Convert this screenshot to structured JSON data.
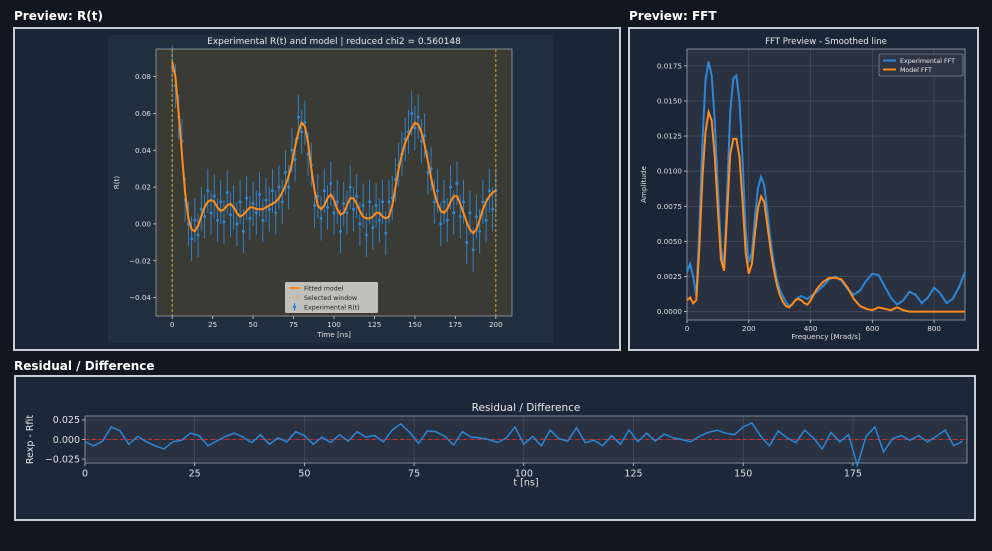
{
  "rt_section": {
    "title": "Preview: R(t)"
  },
  "fft_section": {
    "title": "Preview: FFT"
  },
  "res_section": {
    "title": "Residual / Difference"
  },
  "colors": {
    "page_bg": "#101721",
    "panel_bg": "#1a2535",
    "plot_bg_rt": "#3b3b35",
    "plot_bg_fft": "#2a3140",
    "experimental": "#2e86d6",
    "model": "#ff8c1a",
    "window_line": "#e3a72f",
    "zero_line": "#d62728"
  },
  "chart_data": [
    {
      "type": "line",
      "title": "Experimental R(t) and model | reduced chi2 = 0.560148",
      "xlabel": "Time [ns]",
      "ylabel": "R(t)",
      "xlim": [
        -10,
        210
      ],
      "ylim": [
        -0.05,
        0.095
      ],
      "xticks": [
        0,
        25,
        50,
        75,
        100,
        125,
        150,
        175,
        200
      ],
      "yticks": [
        -0.04,
        -0.02,
        0.0,
        0.02,
        0.04,
        0.06,
        0.08
      ],
      "xtick_labels": [
        "0",
        "25",
        "50",
        "75",
        "100",
        "125",
        "150",
        "175",
        "200"
      ],
      "ytick_labels": [
        "−0.04",
        "−0.02",
        "0.00",
        "0.02",
        "0.04",
        "0.06",
        "0.08"
      ],
      "selected_window": [
        0,
        200
      ],
      "legend": {
        "position": "bottom-center",
        "entries": [
          "Fitted model",
          "Selected window",
          "Experimental R(t)"
        ]
      },
      "series": [
        {
          "name": "Fitted model",
          "x": [
            0,
            2,
            4,
            6,
            8,
            10,
            12,
            14,
            16,
            18,
            20,
            22,
            24,
            26,
            28,
            30,
            32,
            34,
            36,
            38,
            40,
            42,
            44,
            46,
            48,
            50,
            52,
            54,
            56,
            58,
            60,
            62,
            64,
            66,
            68,
            70,
            72,
            74,
            76,
            78,
            80,
            82,
            84,
            86,
            88,
            90,
            92,
            94,
            96,
            98,
            100,
            102,
            104,
            106,
            108,
            110,
            112,
            114,
            116,
            118,
            120,
            122,
            124,
            126,
            128,
            130,
            132,
            134,
            136,
            138,
            140,
            142,
            144,
            146,
            148,
            150,
            152,
            154,
            156,
            158,
            160,
            162,
            164,
            166,
            168,
            170,
            172,
            174,
            176,
            178,
            180,
            182,
            184,
            186,
            188,
            190,
            192,
            194,
            196,
            198,
            200
          ],
          "y": [
            0.088,
            0.08,
            0.06,
            0.038,
            0.017,
            0.003,
            -0.003,
            -0.004,
            -0.001,
            0.004,
            0.009,
            0.012,
            0.013,
            0.012,
            0.009,
            0.007,
            0.008,
            0.01,
            0.011,
            0.009,
            0.006,
            0.004,
            0.005,
            0.007,
            0.009,
            0.009,
            0.008,
            0.008,
            0.008,
            0.009,
            0.01,
            0.011,
            0.012,
            0.014,
            0.017,
            0.021,
            0.026,
            0.033,
            0.042,
            0.05,
            0.055,
            0.053,
            0.044,
            0.03,
            0.018,
            0.01,
            0.008,
            0.01,
            0.014,
            0.016,
            0.013,
            0.008,
            0.005,
            0.006,
            0.01,
            0.014,
            0.014,
            0.011,
            0.007,
            0.004,
            0.003,
            0.003,
            0.004,
            0.006,
            0.006,
            0.004,
            0.003,
            0.004,
            0.01,
            0.02,
            0.03,
            0.038,
            0.044,
            0.048,
            0.052,
            0.055,
            0.054,
            0.05,
            0.043,
            0.034,
            0.025,
            0.017,
            0.011,
            0.007,
            0.006,
            0.008,
            0.012,
            0.015,
            0.015,
            0.011,
            0.006,
            0.001,
            -0.003,
            -0.005,
            -0.003,
            0.002,
            0.008,
            0.012,
            0.015,
            0.017,
            0.018
          ]
        },
        {
          "name": "Experimental R(t)",
          "x": [
            0,
            2,
            4,
            6,
            8,
            10,
            12,
            14,
            16,
            18,
            20,
            22,
            24,
            26,
            28,
            30,
            32,
            34,
            36,
            38,
            40,
            42,
            44,
            46,
            48,
            50,
            52,
            54,
            56,
            58,
            60,
            62,
            64,
            66,
            68,
            70,
            72,
            74,
            76,
            78,
            80,
            82,
            84,
            86,
            88,
            90,
            92,
            94,
            96,
            98,
            100,
            102,
            104,
            106,
            108,
            110,
            112,
            114,
            116,
            118,
            120,
            122,
            124,
            126,
            128,
            130,
            132,
            134,
            136,
            138,
            140,
            142,
            144,
            146,
            148,
            150,
            152,
            154,
            156,
            158,
            160,
            162,
            164,
            166,
            168,
            170,
            172,
            174,
            176,
            178,
            180,
            182,
            184,
            186,
            188,
            190,
            192,
            194,
            196,
            198,
            200
          ],
          "y": [
            0.085,
            0.075,
            0.058,
            0.045,
            0.013,
            0.0,
            -0.008,
            0.002,
            -0.006,
            0.008,
            0.004,
            0.018,
            0.006,
            0.015,
            0.002,
            0.012,
            0.001,
            0.017,
            0.005,
            0.009,
            0.0,
            0.012,
            -0.004,
            0.014,
            0.003,
            0.011,
            0.006,
            0.016,
            0.002,
            0.013,
            0.008,
            0.018,
            0.006,
            0.02,
            0.012,
            0.028,
            0.02,
            0.04,
            0.035,
            0.058,
            0.05,
            0.055,
            0.038,
            0.032,
            0.01,
            0.015,
            0.003,
            0.018,
            0.009,
            0.022,
            0.006,
            0.012,
            -0.004,
            0.011,
            0.006,
            0.02,
            0.008,
            0.015,
            0.0,
            0.01,
            -0.006,
            0.012,
            -0.002,
            0.01,
            0.002,
            0.012,
            -0.005,
            0.012,
            0.014,
            0.024,
            0.032,
            0.038,
            0.046,
            0.05,
            0.06,
            0.052,
            0.058,
            0.045,
            0.048,
            0.028,
            0.03,
            0.012,
            0.018,
            0.0,
            0.012,
            0.002,
            0.02,
            0.006,
            0.022,
            0.004,
            0.012,
            -0.01,
            0.006,
            -0.014,
            0.004,
            -0.004,
            0.012,
            0.002,
            0.018,
            0.008,
            0.018
          ],
          "error": 0.012
        }
      ]
    },
    {
      "type": "line",
      "title": "FFT Preview - Smoothed line",
      "xlabel": "Frequency [Mrad/s]",
      "ylabel": "Amplitude",
      "xlim": [
        0,
        900
      ],
      "ylim": [
        -0.0006,
        0.0187
      ],
      "xticks": [
        0,
        200,
        400,
        600,
        800
      ],
      "yticks": [
        0,
        0.0025,
        0.005,
        0.0075,
        0.01,
        0.0125,
        0.015,
        0.0175
      ],
      "xtick_labels": [
        "0",
        "200",
        "400",
        "600",
        "800"
      ],
      "ytick_labels": [
        "0.0000",
        "0.0025",
        "0.0050",
        "0.0075",
        "0.0100",
        "0.0125",
        "0.0150",
        "0.0175"
      ],
      "grid": true,
      "legend": {
        "position": "top-right",
        "entries": [
          "Experimental FFT",
          "Model FFT"
        ]
      },
      "series": [
        {
          "name": "Experimental FFT",
          "x": [
            0,
            10,
            20,
            30,
            40,
            50,
            60,
            70,
            80,
            90,
            100,
            110,
            120,
            130,
            140,
            150,
            160,
            170,
            180,
            190,
            200,
            210,
            220,
            230,
            240,
            250,
            260,
            270,
            280,
            290,
            300,
            310,
            320,
            330,
            340,
            350,
            360,
            370,
            380,
            390,
            400,
            420,
            440,
            460,
            480,
            500,
            520,
            540,
            560,
            580,
            600,
            620,
            640,
            660,
            680,
            700,
            720,
            740,
            760,
            780,
            800,
            820,
            840,
            860,
            880,
            900
          ],
          "y": [
            0.0028,
            0.0034,
            0.0025,
            0.0011,
            0.006,
            0.012,
            0.0165,
            0.0178,
            0.0168,
            0.0135,
            0.0088,
            0.0045,
            0.0033,
            0.0085,
            0.0142,
            0.0166,
            0.0168,
            0.015,
            0.0108,
            0.0058,
            0.0035,
            0.0042,
            0.0068,
            0.0088,
            0.0096,
            0.009,
            0.0072,
            0.0052,
            0.0036,
            0.0024,
            0.0016,
            0.0011,
            0.0007,
            0.0004,
            0.0005,
            0.0008,
            0.001,
            0.0011,
            0.001,
            0.0009,
            0.0011,
            0.0014,
            0.0018,
            0.0023,
            0.0025,
            0.0022,
            0.0016,
            0.0012,
            0.0015,
            0.0022,
            0.0027,
            0.0026,
            0.0018,
            0.001,
            0.0005,
            0.0008,
            0.0014,
            0.0012,
            0.0006,
            0.001,
            0.0017,
            0.0013,
            0.0006,
            0.0009,
            0.0017,
            0.0028
          ]
        },
        {
          "name": "Model FFT",
          "x": [
            0,
            10,
            20,
            30,
            40,
            50,
            60,
            70,
            80,
            90,
            100,
            110,
            120,
            130,
            140,
            150,
            160,
            170,
            180,
            190,
            200,
            210,
            220,
            230,
            240,
            250,
            260,
            270,
            280,
            290,
            300,
            310,
            320,
            330,
            340,
            350,
            360,
            370,
            380,
            390,
            400,
            420,
            440,
            460,
            480,
            500,
            520,
            540,
            560,
            580,
            600,
            620,
            640,
            660,
            680,
            700,
            720,
            740,
            760,
            780,
            800,
            820,
            840,
            860,
            880,
            900
          ],
          "y": [
            0.0008,
            0.001,
            0.0006,
            0.0008,
            0.0046,
            0.0095,
            0.0128,
            0.0142,
            0.0136,
            0.011,
            0.0072,
            0.0037,
            0.0029,
            0.0071,
            0.0112,
            0.0123,
            0.0123,
            0.011,
            0.0078,
            0.0042,
            0.0027,
            0.0034,
            0.0056,
            0.0074,
            0.0082,
            0.0078,
            0.0062,
            0.0045,
            0.0031,
            0.002,
            0.0012,
            0.0007,
            0.0004,
            0.0003,
            0.0005,
            0.0008,
            0.0009,
            0.0008,
            0.0006,
            0.0005,
            0.0008,
            0.0016,
            0.0021,
            0.0024,
            0.0024,
            0.0023,
            0.0017,
            0.0009,
            0.0004,
            0.0002,
            0.0001,
            0.0003,
            0.0002,
            0.0001,
            0.0003,
            0.0001,
            0.0,
            0.0,
            0.0,
            0.0,
            0.0,
            0.0,
            0.0,
            0.0,
            0.0,
            0.0
          ]
        }
      ]
    },
    {
      "type": "line",
      "title": "Residual / Difference",
      "xlabel": "t [ns]",
      "ylabel": "Rexp - Rfit",
      "xlim": [
        0,
        201
      ],
      "ylim": [
        -0.03,
        0.03
      ],
      "xticks": [
        0,
        25,
        50,
        75,
        100,
        125,
        150,
        175
      ],
      "yticks": [
        -0.025,
        0.0,
        0.025
      ],
      "xtick_labels": [
        "0",
        "25",
        "50",
        "75",
        "100",
        "125",
        "150",
        "175"
      ],
      "ytick_labels": [
        "−0.025",
        "0.000",
        "0.025"
      ],
      "grid": true,
      "zero_line": 0,
      "series": [
        {
          "x": [
            0,
            2,
            4,
            6,
            8,
            10,
            12,
            14,
            16,
            18,
            20,
            22,
            24,
            26,
            28,
            30,
            32,
            34,
            36,
            38,
            40,
            42,
            44,
            46,
            48,
            50,
            52,
            54,
            56,
            58,
            60,
            62,
            64,
            66,
            68,
            70,
            72,
            74,
            76,
            78,
            80,
            82,
            84,
            86,
            88,
            90,
            92,
            94,
            96,
            98,
            100,
            102,
            104,
            106,
            108,
            110,
            112,
            114,
            116,
            118,
            120,
            122,
            124,
            126,
            128,
            130,
            132,
            134,
            136,
            138,
            140,
            142,
            144,
            146,
            148,
            150,
            152,
            154,
            156,
            158,
            160,
            162,
            164,
            166,
            168,
            170,
            172,
            174,
            176,
            178,
            180,
            182,
            184,
            186,
            188,
            190,
            192,
            194,
            196,
            198,
            200
          ],
          "y": [
            -0.003,
            -0.008,
            -0.002,
            0.016,
            0.011,
            -0.006,
            0.004,
            -0.003,
            -0.008,
            -0.012,
            -0.003,
            -0.001,
            0.008,
            0.005,
            -0.008,
            -0.002,
            0.004,
            0.008,
            0.003,
            -0.004,
            0.006,
            -0.006,
            0.002,
            -0.003,
            0.01,
            0.005,
            -0.006,
            0.003,
            -0.004,
            0.006,
            -0.002,
            0.01,
            0.003,
            0.005,
            -0.003,
            0.012,
            0.02,
            0.009,
            -0.005,
            0.011,
            0.01,
            0.004,
            -0.007,
            0.01,
            0.003,
            0.002,
            0.0,
            -0.004,
            0.002,
            0.016,
            -0.006,
            0.004,
            -0.008,
            0.012,
            0.001,
            -0.002,
            0.015,
            -0.004,
            -0.001,
            -0.008,
            0.005,
            -0.006,
            0.012,
            -0.003,
            0.008,
            -0.002,
            0.007,
            0.002,
            0.0,
            -0.003,
            0.004,
            0.009,
            0.012,
            0.008,
            0.006,
            0.016,
            0.021,
            0.004,
            -0.008,
            0.011,
            0.002,
            -0.004,
            0.012,
            0.002,
            -0.012,
            0.009,
            -0.003,
            0.006,
            -0.033,
            0.004,
            0.016,
            -0.016,
            0.001,
            0.005,
            -0.001,
            0.005,
            -0.003,
            0.004,
            0.012,
            -0.008,
            -0.002
          ]
        }
      ]
    }
  ]
}
